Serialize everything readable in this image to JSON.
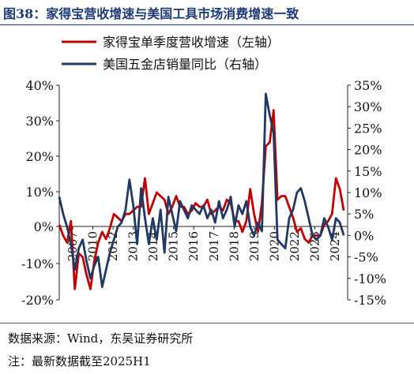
{
  "figure": {
    "title": "图38：家得宝营收增速与美国工具市场消费增速一致",
    "source": "数据来源：Wind，东吴证券研究所",
    "note": "注：最新数据截至2025H1"
  },
  "chart_data": {
    "type": "line",
    "legend_position": "top",
    "grid": false,
    "left_axis": {
      "ticks": [
        "40%",
        "30%",
        "20%",
        "10%",
        "0%",
        "-10%",
        "-20%"
      ],
      "ylim": [
        -20,
        40
      ]
    },
    "right_axis": {
      "ticks": [
        "35%",
        "30%",
        "25%",
        "20%",
        "15%",
        "10%",
        "5%",
        "0%",
        "-5%",
        "-10%",
        "-15%"
      ],
      "ylim": [
        -15,
        35
      ]
    },
    "x_ticks": [
      "2007",
      "2010",
      "2012",
      "2013",
      "2014",
      "2015",
      "2016",
      "2017",
      "2018",
      "2019",
      "2020",
      "2022",
      "2023",
      "2024"
    ],
    "xlim": [
      2007.0,
      2025.5
    ],
    "series": [
      {
        "name": "家得宝单季度营收增速（左轴）",
        "color": "#c00000",
        "axis": "left",
        "x": [
          2007.0,
          2007.25,
          2007.5,
          2007.75,
          2008.0,
          2008.25,
          2008.5,
          2008.75,
          2009.0,
          2009.25,
          2009.5,
          2009.75,
          2010.0,
          2010.25,
          2010.5,
          2010.75,
          2011.0,
          2011.25,
          2011.5,
          2011.75,
          2012.0,
          2012.25,
          2012.5,
          2012.75,
          2013.0,
          2013.25,
          2013.5,
          2013.75,
          2014.0,
          2014.25,
          2014.5,
          2014.75,
          2015.0,
          2015.25,
          2015.5,
          2015.75,
          2016.0,
          2016.25,
          2016.5,
          2016.75,
          2017.0,
          2017.25,
          2017.5,
          2017.75,
          2018.0,
          2018.25,
          2018.5,
          2018.75,
          2019.0,
          2019.25,
          2019.5,
          2019.75,
          2020.0,
          2020.25,
          2020.5,
          2020.75,
          2021.0,
          2021.25,
          2021.5,
          2021.75,
          2022.0,
          2022.25,
          2022.5,
          2022.75,
          2023.0,
          2023.25,
          2023.5,
          2023.75,
          2024.0,
          2024.25,
          2024.5,
          2024.75,
          2025.0,
          2025.25
        ],
        "values": [
          1,
          -2,
          -4,
          2,
          -17,
          -7,
          -8,
          -13,
          -17,
          -9,
          -4,
          -1,
          -3,
          0,
          4,
          3,
          2,
          4,
          4,
          5,
          6,
          6,
          14,
          4,
          7,
          10,
          9,
          8,
          4,
          6,
          9,
          6,
          6,
          4,
          5,
          7,
          6,
          6,
          8,
          4,
          5,
          6,
          5,
          8,
          7,
          2,
          2,
          -1,
          2,
          11,
          4,
          -1,
          7,
          23,
          24,
          33,
          8,
          9,
          9,
          6,
          3,
          -1,
          0,
          -3,
          -4,
          -2,
          -2,
          -2,
          1,
          2,
          4,
          14,
          11,
          5
        ],
        "scatter_note": ""
      },
      {
        "name": "美国五金店销量同比（右轴）",
        "color": "#1f3864",
        "axis": "right",
        "x": [
          2007.0,
          2007.25,
          2007.5,
          2007.75,
          2008.0,
          2008.25,
          2008.5,
          2008.75,
          2009.0,
          2009.25,
          2009.5,
          2009.75,
          2010.0,
          2010.25,
          2010.5,
          2010.75,
          2011.0,
          2011.25,
          2011.5,
          2011.75,
          2012.0,
          2012.25,
          2012.5,
          2012.75,
          2013.0,
          2013.25,
          2013.5,
          2013.75,
          2014.0,
          2014.25,
          2014.5,
          2014.75,
          2015.0,
          2015.25,
          2015.5,
          2015.75,
          2016.0,
          2016.25,
          2016.5,
          2016.75,
          2017.0,
          2017.25,
          2017.5,
          2017.75,
          2018.0,
          2018.25,
          2018.5,
          2018.75,
          2019.0,
          2019.25,
          2019.5,
          2019.75,
          2020.0,
          2020.25,
          2020.5,
          2020.75,
          2021.0,
          2021.25,
          2021.5,
          2021.75,
          2022.0,
          2022.25,
          2022.5,
          2022.75,
          2023.0,
          2023.25,
          2023.5,
          2023.75,
          2024.0,
          2024.25,
          2024.5,
          2024.75,
          2025.0,
          2025.25
        ],
        "values": [
          9,
          5,
          2,
          -2,
          -8,
          -3,
          -1,
          -6,
          -10,
          -7,
          -5,
          -12,
          -8,
          -4,
          -1,
          2,
          3,
          6,
          13,
          7,
          -2,
          11,
          4,
          -2,
          4,
          -1,
          6,
          -4,
          9,
          5,
          1,
          8,
          6,
          4,
          7,
          6,
          5,
          7,
          4,
          6,
          3,
          8,
          4,
          6,
          9,
          2,
          7,
          5,
          8,
          2,
          0,
          3,
          1,
          33,
          28,
          24,
          -1,
          -2,
          -3,
          4,
          6,
          10,
          11,
          8,
          4,
          0,
          -1,
          0,
          4,
          2,
          -1,
          4,
          3,
          0
        ]
      }
    ]
  }
}
